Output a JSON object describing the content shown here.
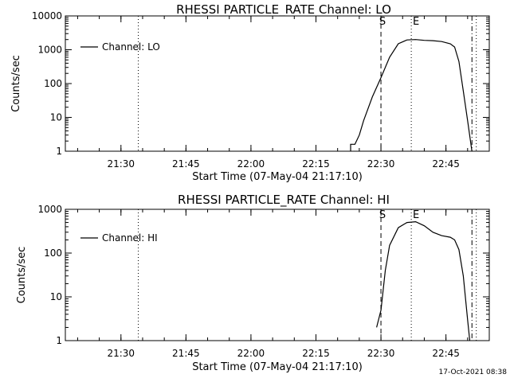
{
  "footer": {
    "date": "17-Oct-2021 08:38"
  },
  "chart_data": [
    {
      "type": "line",
      "title": "RHESSI PARTICLE_RATE Channel: LO",
      "xlabel": "Start Time (07-May-04 21:17:10)",
      "ylabel": "Counts/sec",
      "yscale": "log",
      "xlim": [
        "21:17:10",
        "22:55:00"
      ],
      "ylim": [
        1,
        10000
      ],
      "x_ticks": [
        "21:30",
        "21:45",
        "22:00",
        "22:15",
        "22:30",
        "22:45"
      ],
      "y_ticks": [
        "1",
        "10",
        "100",
        "1000",
        "10000"
      ],
      "legend": {
        "label": "Channel: LO",
        "position": "top-left"
      },
      "markers": [
        {
          "time": "21:34:00",
          "label": "",
          "style": "dotted"
        },
        {
          "time": "22:30:00",
          "label": "S",
          "style": "dashed"
        },
        {
          "time": "22:37:00",
          "label": "E",
          "style": "dotted"
        },
        {
          "time": "22:51:00",
          "label": "",
          "style": "dashdot"
        },
        {
          "time": "22:52:00",
          "label": "",
          "style": "dotted"
        }
      ],
      "series": [
        {
          "name": "Channel: LO",
          "points": [
            [
              "22:23:00",
              1
            ],
            [
              "22:23:00",
              1.6
            ],
            [
              "22:24:00",
              1.6
            ],
            [
              "22:25:00",
              3
            ],
            [
              "22:26:00",
              8
            ],
            [
              "22:28:00",
              40
            ],
            [
              "22:30:00",
              150
            ],
            [
              "22:32:00",
              600
            ],
            [
              "22:34:00",
              1500
            ],
            [
              "22:36:00",
              1950
            ],
            [
              "22:38:00",
              2000
            ],
            [
              "22:40:00",
              1900
            ],
            [
              "22:42:00",
              1850
            ],
            [
              "22:44:00",
              1750
            ],
            [
              "22:46:00",
              1500
            ],
            [
              "22:47:00",
              1200
            ],
            [
              "22:48:00",
              450
            ],
            [
              "22:49:00",
              60
            ],
            [
              "22:50:00",
              8
            ],
            [
              "22:51:00",
              1
            ]
          ]
        }
      ]
    },
    {
      "type": "line",
      "title": "RHESSI PARTICLE_RATE Channel: HI",
      "xlabel": "Start Time (07-May-04 21:17:10)",
      "ylabel": "Counts/sec",
      "yscale": "log",
      "xlim": [
        "21:17:10",
        "22:55:00"
      ],
      "ylim": [
        1,
        1000
      ],
      "x_ticks": [
        "21:30",
        "21:45",
        "22:00",
        "22:15",
        "22:30",
        "22:45"
      ],
      "y_ticks": [
        "1",
        "10",
        "100",
        "1000"
      ],
      "legend": {
        "label": "Channel: HI",
        "position": "top-left"
      },
      "markers": [
        {
          "time": "21:34:00",
          "label": "",
          "style": "dotted"
        },
        {
          "time": "22:30:00",
          "label": "S",
          "style": "dashed"
        },
        {
          "time": "22:37:00",
          "label": "E",
          "style": "dotted"
        },
        {
          "time": "22:51:00",
          "label": "",
          "style": "dashdot"
        },
        {
          "time": "22:52:00",
          "label": "",
          "style": "dotted"
        }
      ],
      "series": [
        {
          "name": "Channel: HI",
          "points": [
            [
              "22:29:00",
              2
            ],
            [
              "22:30:00",
              5
            ],
            [
              "22:31:00",
              40
            ],
            [
              "22:32:00",
              150
            ],
            [
              "22:34:00",
              380
            ],
            [
              "22:36:00",
              500
            ],
            [
              "22:38:00",
              520
            ],
            [
              "22:40:00",
              420
            ],
            [
              "22:42:00",
              300
            ],
            [
              "22:44:00",
              250
            ],
            [
              "22:46:00",
              230
            ],
            [
              "22:47:00",
              200
            ],
            [
              "22:48:00",
              120
            ],
            [
              "22:49:00",
              30
            ],
            [
              "22:50:00",
              3
            ],
            [
              "22:50:30",
              1
            ]
          ]
        }
      ]
    }
  ]
}
